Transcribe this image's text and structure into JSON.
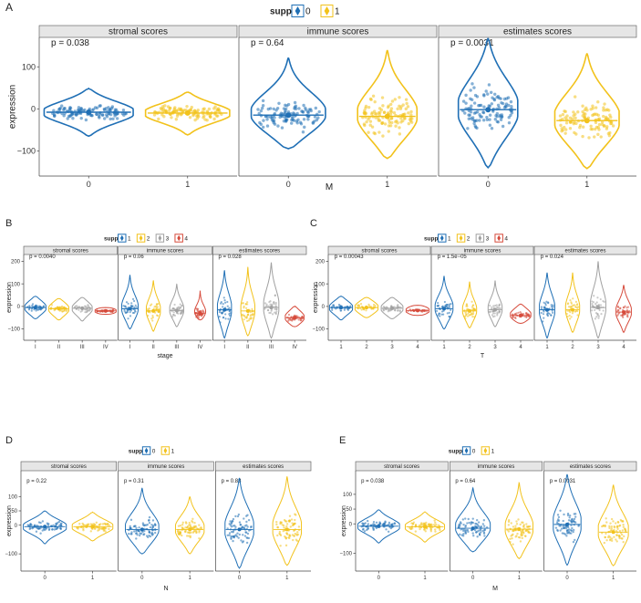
{
  "colors": {
    "1": "#1f6fb5",
    "2": "#f2c21b",
    "3": "#a0a0a0",
    "4": "#d64a3b",
    "strip_bg": "#e6e6e6",
    "axis": "#444444"
  },
  "chart_data": [
    {
      "id": "A",
      "label": "A",
      "type": "violin",
      "legend": {
        "title": "supp",
        "levels": [
          "0",
          "1"
        ]
      },
      "xlabel": "M",
      "ylabel": "expression",
      "ylim": [
        -160,
        170
      ],
      "yticks": [
        100,
        0,
        -100
      ],
      "categories": [
        "0",
        "1"
      ],
      "panels": [
        {
          "strip": "stromal scores",
          "p": "p = 0.038",
          "groups": [
            {
              "level": "0",
              "median": -8,
              "min": -65,
              "max": 48,
              "w": 0.9
            },
            {
              "level": "1",
              "median": -10,
              "min": -62,
              "max": 40,
              "w": 0.85
            }
          ]
        },
        {
          "strip": "immune scores",
          "p": "p = 0.64",
          "groups": [
            {
              "level": "0",
              "median": -15,
              "min": -95,
              "max": 122,
              "w": 0.75
            },
            {
              "level": "1",
              "median": -18,
              "min": -118,
              "max": 140,
              "w": 0.6
            }
          ]
        },
        {
          "strip": "estimates scores",
          "p": "p = 0.0031",
          "groups": [
            {
              "level": "0",
              "median": -2,
              "min": -140,
              "max": 168,
              "w": 0.6
            },
            {
              "level": "1",
              "median": -28,
              "min": -142,
              "max": 132,
              "w": 0.65
            }
          ]
        }
      ]
    },
    {
      "id": "B",
      "label": "B",
      "type": "violin",
      "legend": {
        "title": "supp",
        "levels": [
          "1",
          "2",
          "3",
          "4"
        ]
      },
      "xlabel": "stage",
      "ylabel": "expression",
      "ylim": [
        -150,
        230
      ],
      "yticks": [
        200,
        100,
        0,
        -100
      ],
      "categories": [
        "I",
        "II",
        "III",
        "IV"
      ],
      "panels": [
        {
          "strip": "stromal scores",
          "p": "p = 0.0040",
          "groups": [
            {
              "level": "1",
              "median": -5,
              "min": -55,
              "max": 45,
              "w": 0.9
            },
            {
              "level": "2",
              "median": -10,
              "min": -60,
              "max": 35,
              "w": 0.85
            },
            {
              "level": "3",
              "median": -8,
              "min": -65,
              "max": 40,
              "w": 0.85
            },
            {
              "level": "4",
              "median": -20,
              "min": -35,
              "max": -5,
              "w": 0.9
            }
          ]
        },
        {
          "strip": "immune scores",
          "p": "p = 0.06",
          "groups": [
            {
              "level": "1",
              "median": -10,
              "min": -100,
              "max": 140,
              "w": 0.7
            },
            {
              "level": "2",
              "median": -20,
              "min": -110,
              "max": 115,
              "w": 0.6
            },
            {
              "level": "3",
              "median": -18,
              "min": -90,
              "max": 100,
              "w": 0.6
            },
            {
              "level": "4",
              "median": -30,
              "min": -60,
              "max": 70,
              "w": 0.5
            }
          ]
        },
        {
          "strip": "estimates scores",
          "p": "p = 0.028",
          "groups": [
            {
              "level": "1",
              "median": -15,
              "min": -140,
              "max": 160,
              "w": 0.6
            },
            {
              "level": "2",
              "median": -20,
              "min": -130,
              "max": 175,
              "w": 0.6
            },
            {
              "level": "3",
              "median": -5,
              "min": -140,
              "max": 195,
              "w": 0.65
            },
            {
              "level": "4",
              "median": -50,
              "min": -90,
              "max": 0,
              "w": 0.8
            }
          ]
        }
      ]
    },
    {
      "id": "C",
      "label": "C",
      "type": "violin",
      "legend": {
        "title": "supp",
        "levels": [
          "1",
          "2",
          "3",
          "4"
        ]
      },
      "xlabel": "T",
      "ylabel": "expression",
      "ylim": [
        -150,
        230
      ],
      "yticks": [
        200,
        100,
        0,
        -100
      ],
      "categories": [
        "1",
        "2",
        "3",
        "4"
      ],
      "panels": [
        {
          "strip": "stromal scores",
          "p": "p = 0.00043",
          "groups": [
            {
              "level": "1",
              "median": -5,
              "min": -60,
              "max": 45,
              "w": 0.9
            },
            {
              "level": "2",
              "median": -5,
              "min": -50,
              "max": 40,
              "w": 0.9
            },
            {
              "level": "3",
              "median": -8,
              "min": -55,
              "max": 40,
              "w": 0.85
            },
            {
              "level": "4",
              "median": -18,
              "min": -40,
              "max": 5,
              "w": 0.9
            }
          ]
        },
        {
          "strip": "immune scores",
          "p": "p = 1.5e−05",
          "groups": [
            {
              "level": "1",
              "median": -10,
              "min": -100,
              "max": 135,
              "w": 0.7
            },
            {
              "level": "2",
              "median": -20,
              "min": -95,
              "max": 110,
              "w": 0.55
            },
            {
              "level": "3",
              "median": -15,
              "min": -90,
              "max": 115,
              "w": 0.55
            },
            {
              "level": "4",
              "median": -40,
              "min": -75,
              "max": 10,
              "w": 0.8
            }
          ]
        },
        {
          "strip": "estimates scores",
          "p": "p = 0.024",
          "groups": [
            {
              "level": "1",
              "median": -15,
              "min": -140,
              "max": 150,
              "w": 0.6
            },
            {
              "level": "2",
              "median": -15,
              "min": -115,
              "max": 150,
              "w": 0.55
            },
            {
              "level": "3",
              "median": -5,
              "min": -140,
              "max": 200,
              "w": 0.6
            },
            {
              "level": "4",
              "median": -25,
              "min": -115,
              "max": 95,
              "w": 0.6
            }
          ]
        }
      ]
    },
    {
      "id": "D",
      "label": "D",
      "type": "violin",
      "legend": {
        "title": "supp",
        "levels": [
          "0",
          "1"
        ]
      },
      "xlabel": "N",
      "ylabel": "expression",
      "ylim": [
        -160,
        190
      ],
      "yticks": [
        100,
        50,
        0,
        -100
      ],
      "categories": [
        "0",
        "1"
      ],
      "panels": [
        {
          "strip": "stromal scores",
          "p": "p = 0.22",
          "groups": [
            {
              "level": "0",
              "median": -5,
              "min": -65,
              "max": 50,
              "w": 0.9
            },
            {
              "level": "1",
              "median": -5,
              "min": -55,
              "max": 45,
              "w": 0.85
            }
          ]
        },
        {
          "strip": "immune scores",
          "p": "p = 0.31",
          "groups": [
            {
              "level": "0",
              "median": -15,
              "min": -100,
              "max": 130,
              "w": 0.7
            },
            {
              "level": "1",
              "median": -15,
              "min": -100,
              "max": 100,
              "w": 0.6
            }
          ]
        },
        {
          "strip": "estimates scores",
          "p": "p = 0.88",
          "groups": [
            {
              "level": "0",
              "median": -15,
              "min": -150,
              "max": 165,
              "w": 0.6
            },
            {
              "level": "1",
              "median": -15,
              "min": -140,
              "max": 170,
              "w": 0.6
            }
          ]
        }
      ]
    },
    {
      "id": "E",
      "label": "E",
      "type": "violin",
      "legend": {
        "title": "supp",
        "levels": [
          "0",
          "1"
        ]
      },
      "xlabel": "M",
      "ylabel": "expression",
      "ylim": [
        -160,
        180
      ],
      "yticks": [
        100,
        50,
        0,
        -100
      ],
      "categories": [
        "0",
        "1"
      ],
      "panels": [
        {
          "strip": "stromal scores",
          "p": "p = 0.038",
          "groups": [
            {
              "level": "0",
              "median": -8,
              "min": -65,
              "max": 48,
              "w": 0.9
            },
            {
              "level": "1",
              "median": -10,
              "min": -62,
              "max": 40,
              "w": 0.85
            }
          ]
        },
        {
          "strip": "immune scores",
          "p": "p = 0.64",
          "groups": [
            {
              "level": "0",
              "median": -15,
              "min": -95,
              "max": 122,
              "w": 0.75
            },
            {
              "level": "1",
              "median": -18,
              "min": -118,
              "max": 140,
              "w": 0.6
            }
          ]
        },
        {
          "strip": "estimates scores",
          "p": "p = 0.0031",
          "groups": [
            {
              "level": "0",
              "median": -2,
              "min": -140,
              "max": 168,
              "w": 0.6
            },
            {
              "level": "1",
              "median": -28,
              "min": -142,
              "max": 132,
              "w": 0.65
            }
          ]
        }
      ]
    }
  ]
}
